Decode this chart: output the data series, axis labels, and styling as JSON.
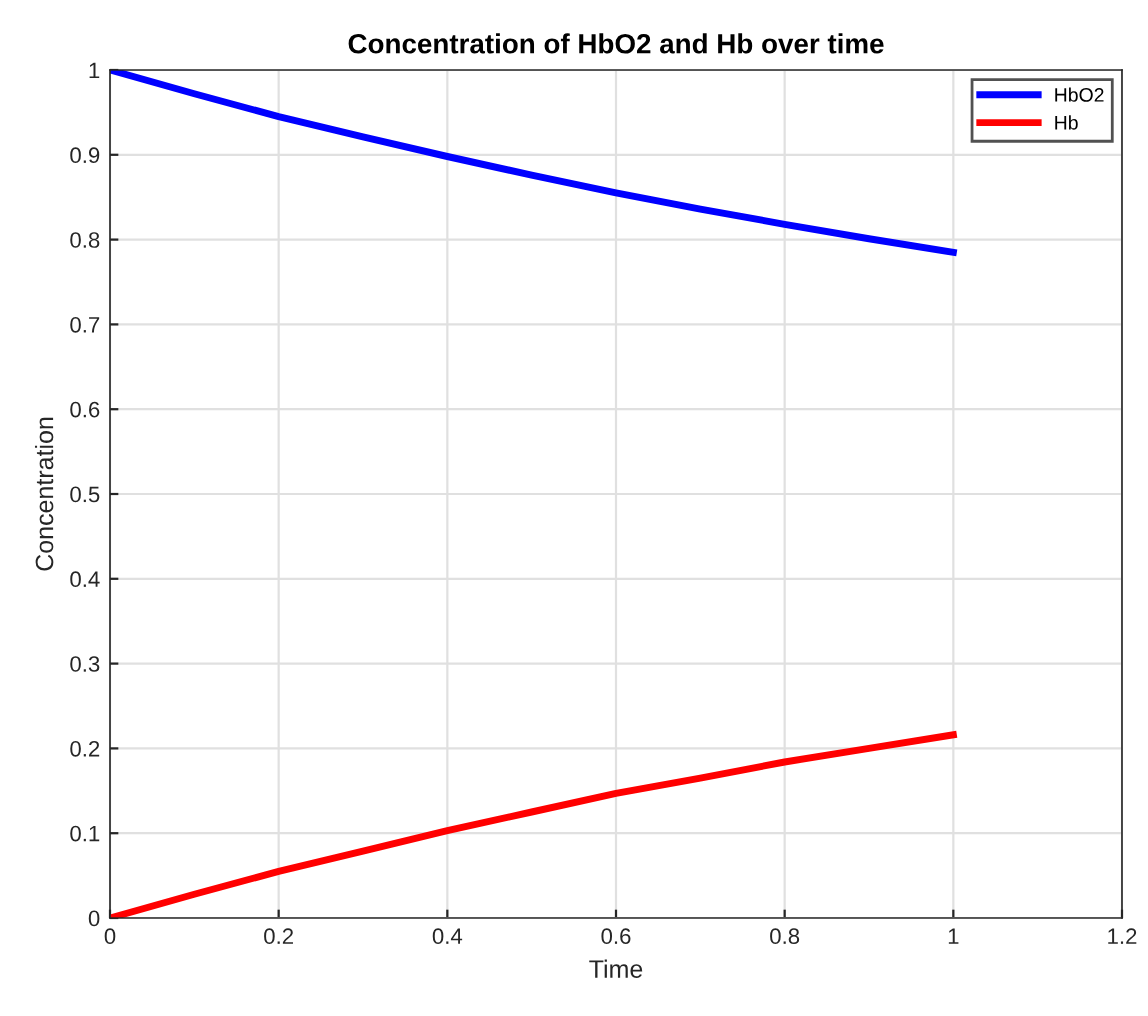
{
  "chart_data": {
    "type": "line",
    "title": "Concentration of HbO2 and Hb over time",
    "xlabel": "Time",
    "ylabel": "Concentration",
    "x": [
      0,
      0.1,
      0.2,
      0.3,
      0.4,
      0.5,
      0.6,
      0.7,
      0.8,
      0.9,
      1
    ],
    "series": [
      {
        "name": "HbO2",
        "color": "#0000ff",
        "values": [
          1,
          0.972,
          0.945,
          0.921,
          0.898,
          0.876,
          0.855,
          0.836,
          0.818,
          0.801,
          0.785
        ]
      },
      {
        "name": "Hb",
        "color": "#ff0000",
        "values": [
          0,
          0.028,
          0.055,
          0.079,
          0.103,
          0.125,
          0.147,
          0.165,
          0.184,
          0.2,
          0.216
        ]
      }
    ],
    "xlim": [
      0,
      1.2
    ],
    "xticks": [
      0,
      0.2,
      0.4,
      0.6,
      0.8,
      1,
      1.2
    ],
    "ylim": [
      0,
      1
    ],
    "yticks": [
      0,
      0.1,
      0.2,
      0.3,
      0.4,
      0.5,
      0.6,
      0.7,
      0.8,
      0.9,
      1
    ],
    "grid": true,
    "legend": "top right",
    "marker": "none",
    "line_style": "solid"
  }
}
